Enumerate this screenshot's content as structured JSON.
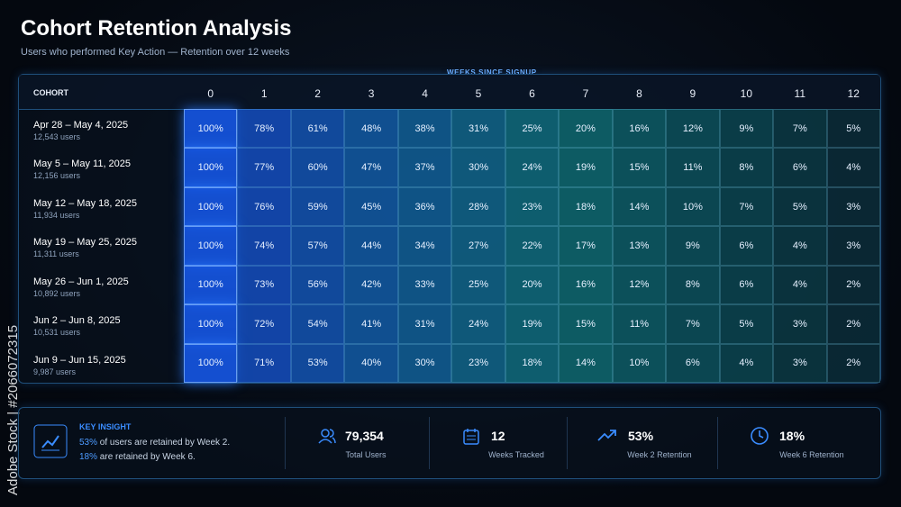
{
  "header": {
    "title": "Cohort Retention Analysis",
    "subtitle": "Users who performed Key Action — Retention over 12 weeks"
  },
  "watermark": "Adobe Stock | #2066072315",
  "table": {
    "group_label": "WEEKS SINCE SIGNUP",
    "cohort_header": "COHORT",
    "weeks": [
      0,
      1,
      2,
      3,
      4,
      5,
      6,
      7,
      8,
      9,
      10,
      11,
      12
    ],
    "rows": [
      {
        "cohort": "Apr 28 – May 4, 2025",
        "users": "12,543 users",
        "cells": [
          "100%",
          "78%",
          "61%",
          "48%",
          "38%",
          "31%",
          "25%",
          "20%",
          "16%",
          "12%",
          "9%",
          "7%",
          "5%"
        ]
      },
      {
        "cohort": "May 5 – May 11, 2025",
        "users": "12,156 users",
        "cells": [
          "100%",
          "77%",
          "60%",
          "47%",
          "37%",
          "30%",
          "24%",
          "19%",
          "15%",
          "11%",
          "8%",
          "6%",
          "4%"
        ]
      },
      {
        "cohort": "May 12 – May 18, 2025",
        "users": "11,934 users",
        "cells": [
          "100%",
          "76%",
          "59%",
          "45%",
          "36%",
          "28%",
          "23%",
          "18%",
          "14%",
          "10%",
          "7%",
          "5%",
          "3%"
        ]
      },
      {
        "cohort": "May 19 – May 25, 2025",
        "users": "11,311 users",
        "cells": [
          "100%",
          "74%",
          "57%",
          "44%",
          "34%",
          "27%",
          "22%",
          "17%",
          "13%",
          "9%",
          "6%",
          "4%",
          "3%"
        ]
      },
      {
        "cohort": "May 26 – Jun 1, 2025",
        "users": "10,892 users",
        "cells": [
          "100%",
          "73%",
          "56%",
          "42%",
          "33%",
          "25%",
          "20%",
          "16%",
          "12%",
          "8%",
          "6%",
          "4%",
          "2%"
        ]
      },
      {
        "cohort": "Jun 2 – Jun 8, 2025",
        "users": "10,531 users",
        "cells": [
          "100%",
          "72%",
          "54%",
          "41%",
          "31%",
          "24%",
          "19%",
          "15%",
          "11%",
          "7%",
          "5%",
          "3%",
          "2%"
        ]
      },
      {
        "cohort": "Jun 9 – Jun 15, 2025",
        "users": "9,987 users",
        "cells": [
          "100%",
          "71%",
          "53%",
          "40%",
          "30%",
          "23%",
          "18%",
          "14%",
          "10%",
          "6%",
          "4%",
          "3%",
          "2%"
        ]
      }
    ]
  },
  "insight": {
    "label": "KEY INSIGHT",
    "lines": [
      {
        "highlight": "53%",
        "text": "of users are retained by Week 2."
      },
      {
        "highlight": "18%",
        "text": "are retained by Week 6."
      }
    ]
  },
  "stats": [
    {
      "value": "79,354",
      "label": "Total Users"
    },
    {
      "value": "12",
      "label": "Weeks Tracked"
    },
    {
      "value": "53%",
      "label": "Week 2 Retention"
    },
    {
      "value": "18%",
      "label": "Week 6 Retention"
    }
  ]
}
